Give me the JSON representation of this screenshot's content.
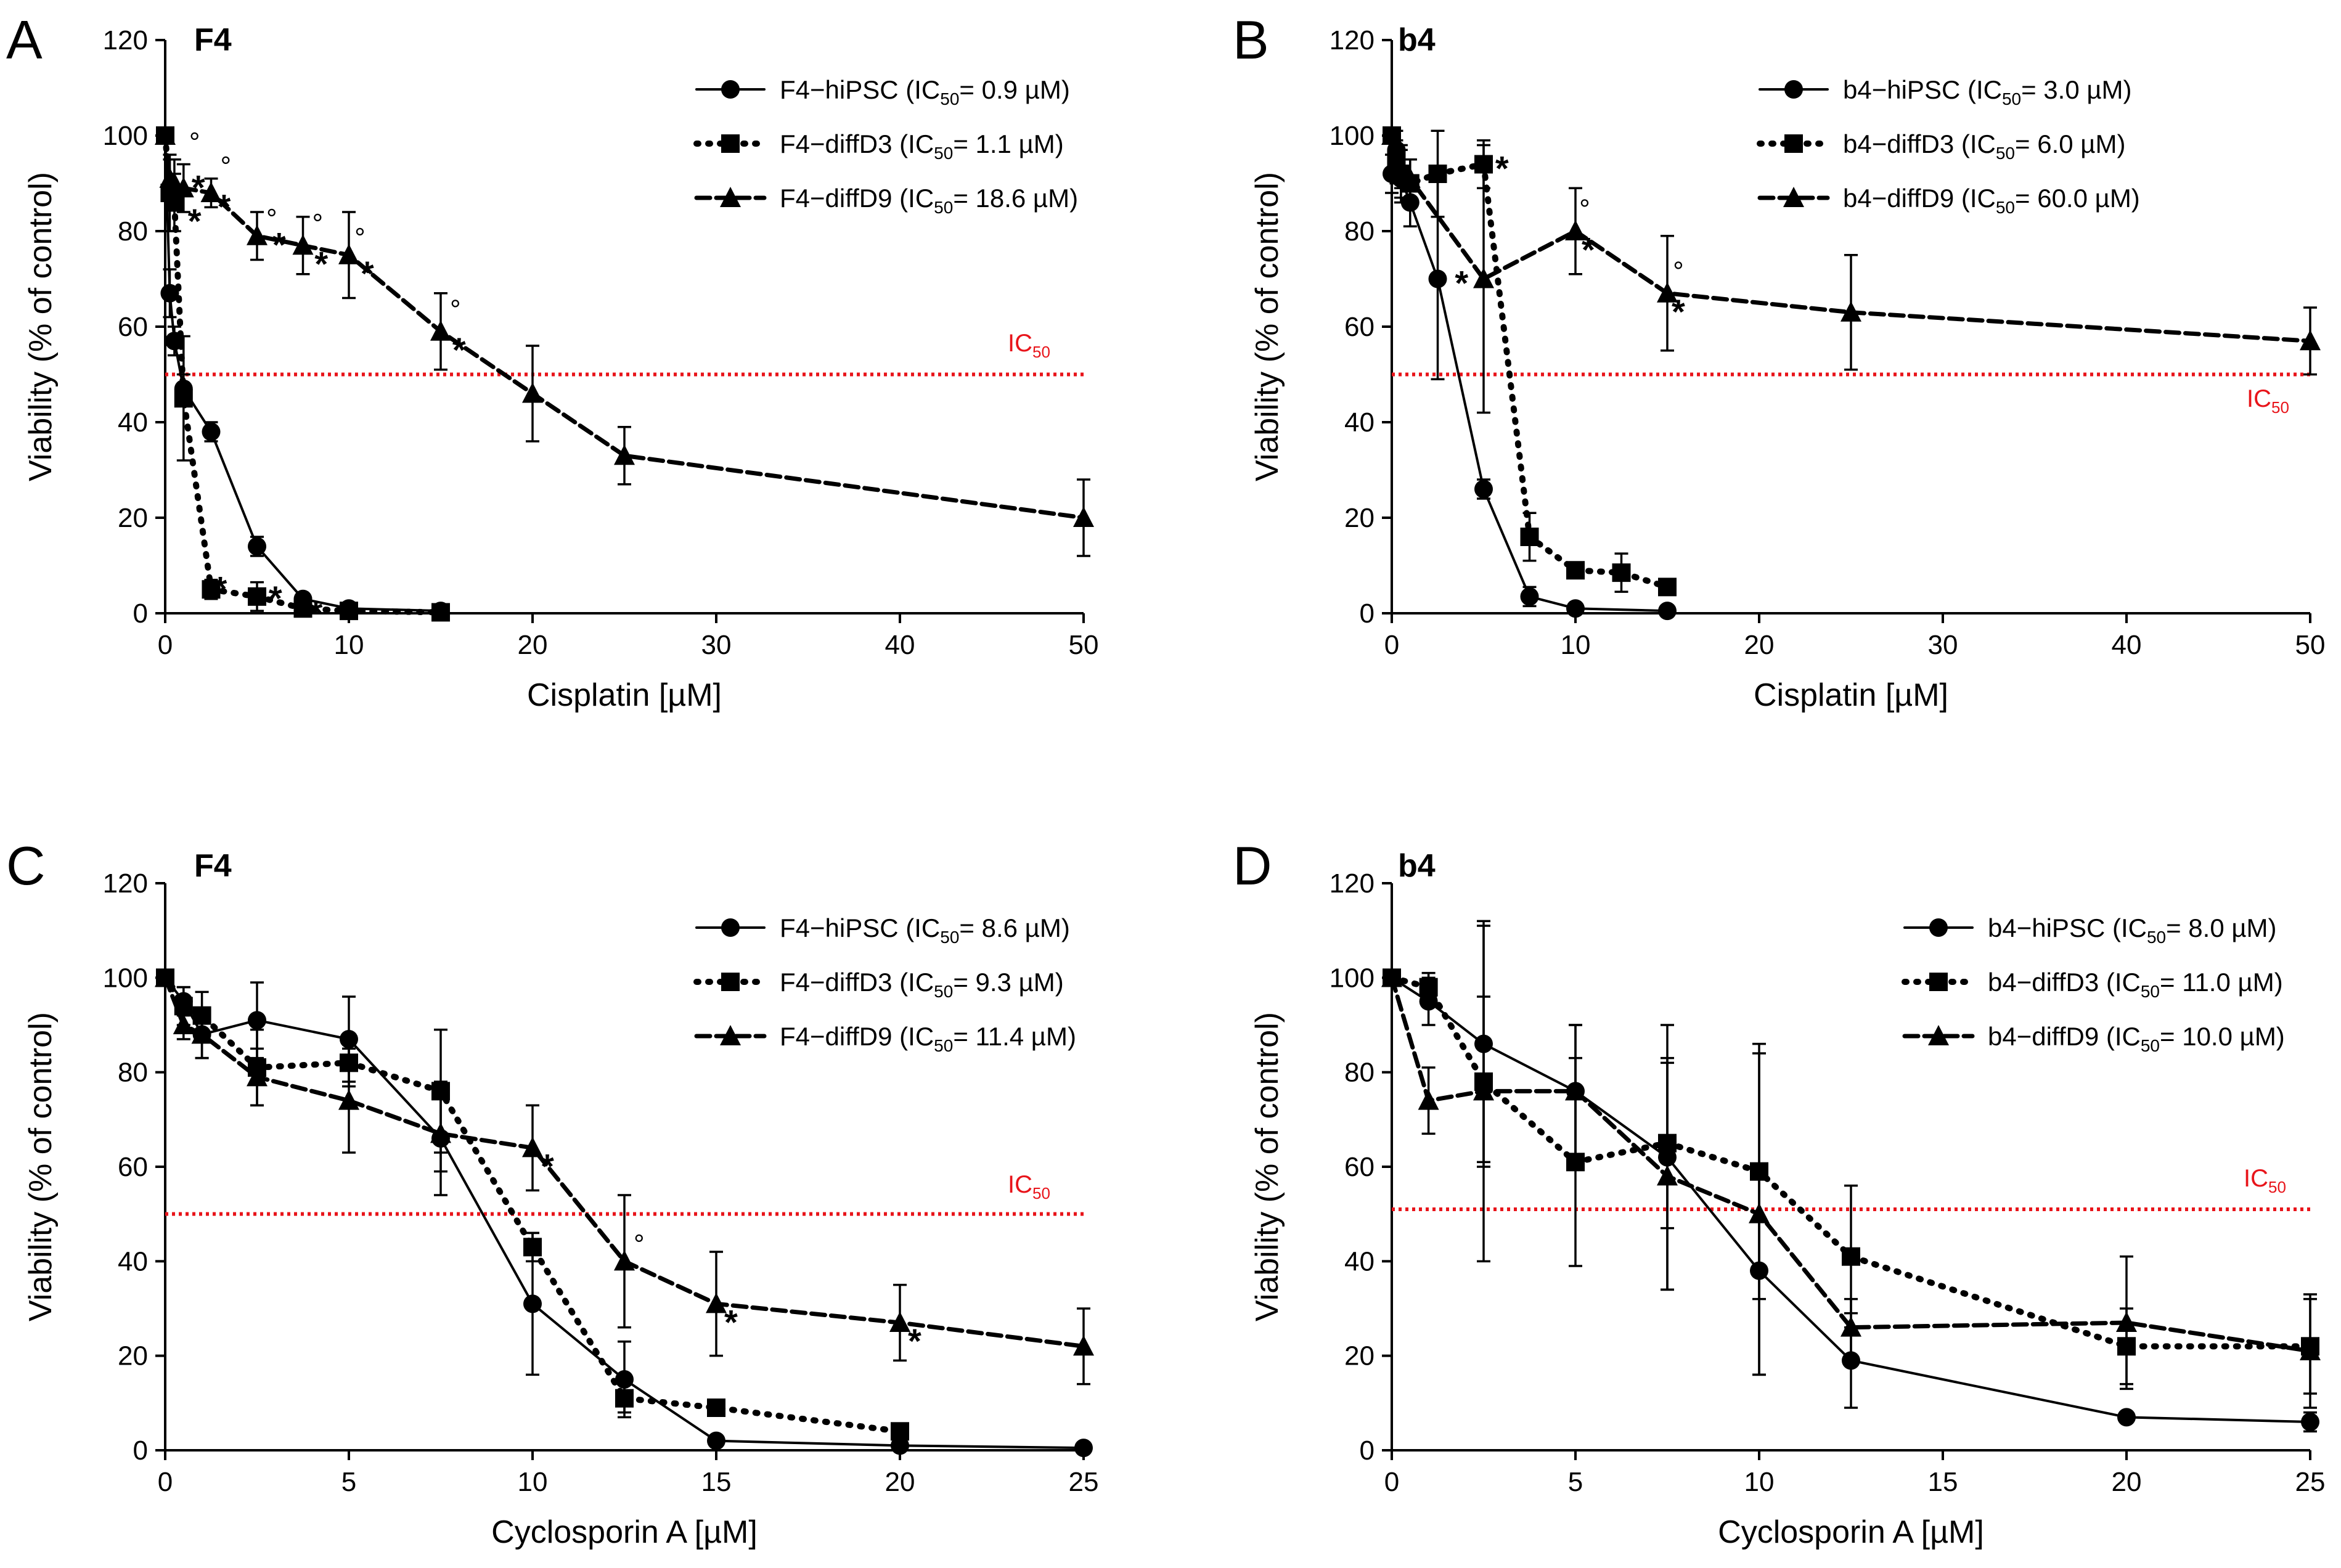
{
  "chart_data": [
    {
      "panel": "A",
      "title": "F4",
      "type": "line",
      "xlabel": "Cisplatin [µM]",
      "ylabel": "Viability (% of control)",
      "xlim": [
        0,
        50
      ],
      "ylim": [
        0,
        120
      ],
      "xticks": [
        0,
        10,
        20,
        30,
        40,
        50
      ],
      "yticks": [
        0,
        20,
        40,
        60,
        80,
        100,
        120
      ],
      "ic50_line": 50,
      "ic50_label": {
        "main": "IC",
        "sub": "50"
      },
      "legend_placement": "top-right",
      "series": [
        {
          "name": "F4−hiPSC",
          "ic50": "0.9 µM",
          "marker": "circle",
          "line": "solid",
          "x": [
            0,
            0.25,
            0.5,
            1,
            2.5,
            5,
            7.5,
            10,
            15
          ],
          "y": [
            100,
            67,
            57,
            47,
            38,
            14,
            3,
            1,
            0.5
          ],
          "err": [
            0,
            5,
            3,
            3,
            2,
            2,
            1,
            0.5,
            0.3
          ]
        },
        {
          "name": "F4−diffD3",
          "ic50": "1.1 µM",
          "marker": "square",
          "line": "dotted",
          "x": [
            0,
            0.25,
            0.5,
            1,
            2.5,
            5,
            7.5,
            10,
            15
          ],
          "y": [
            100,
            88,
            86,
            45,
            5,
            3.5,
            1,
            0.5,
            0.2
          ],
          "err": [
            0,
            8,
            6,
            13,
            2,
            3,
            1,
            0.5,
            0.3
          ]
        },
        {
          "name": "F4−diffD9",
          "ic50": "18.6 µM",
          "marker": "triangle",
          "line": "dashed",
          "x": [
            0,
            0.25,
            0.5,
            1,
            2.5,
            5,
            7.5,
            10,
            15,
            20,
            25,
            50
          ],
          "y": [
            100,
            91,
            90,
            89,
            88,
            79,
            77,
            75,
            59,
            46,
            33,
            20
          ],
          "err": [
            0,
            4,
            5,
            5,
            3,
            5,
            6,
            9,
            8,
            10,
            6,
            8
          ]
        }
      ],
      "annotations": [
        {
          "text": "*",
          "x": 1.8,
          "y": 90
        },
        {
          "text": "*",
          "x": 1.6,
          "y": 83
        },
        {
          "text": "*",
          "x": 3.2,
          "y": 86
        },
        {
          "text": "*",
          "x": 6.2,
          "y": 78
        },
        {
          "text": "*",
          "x": 8.5,
          "y": 74
        },
        {
          "text": "*",
          "x": 11.0,
          "y": 72
        },
        {
          "text": "*",
          "x": 16.0,
          "y": 56
        },
        {
          "text": "*",
          "x": 3.0,
          "y": 6
        },
        {
          "text": "*",
          "x": 6.0,
          "y": 4
        },
        {
          "text": "*",
          "x": 8.2,
          "y": 1
        },
        {
          "text": "°",
          "x": 1.6,
          "y": 98
        },
        {
          "text": "°",
          "x": 3.3,
          "y": 93
        },
        {
          "text": "°",
          "x": 5.8,
          "y": 82
        },
        {
          "text": "°",
          "x": 8.3,
          "y": 81
        },
        {
          "text": "°",
          "x": 10.6,
          "y": 78
        },
        {
          "text": "°",
          "x": 15.8,
          "y": 63
        }
      ]
    },
    {
      "panel": "B",
      "title": "b4",
      "type": "line",
      "xlabel": "Cisplatin [µM]",
      "ylabel": "Viability (% of control)",
      "xlim": [
        0,
        50
      ],
      "ylim": [
        0,
        120
      ],
      "xticks": [
        0,
        10,
        20,
        30,
        40,
        50
      ],
      "yticks": [
        0,
        20,
        40,
        60,
        80,
        100,
        120
      ],
      "ic50_line": 50,
      "ic50_label": {
        "main": "IC",
        "sub": "50"
      },
      "legend_placement": "top-right",
      "series": [
        {
          "name": "b4−hiPSC",
          "ic50": "3.0 µM",
          "marker": "circle",
          "line": "solid",
          "x": [
            0,
            0.25,
            0.5,
            1,
            2.5,
            5,
            7.5,
            10,
            15
          ],
          "y": [
            92,
            97,
            91,
            86,
            70,
            26,
            3.5,
            1,
            0.5
          ],
          "err": [
            4,
            4,
            4,
            5,
            21,
            2,
            2,
            1,
            0.5
          ]
        },
        {
          "name": "b4−diffD3",
          "ic50": "6.0 µM",
          "marker": "square",
          "line": "dotted",
          "x": [
            0,
            0.25,
            0.5,
            1,
            2.5,
            5,
            7.5,
            10,
            12.5,
            15
          ],
          "y": [
            100,
            95,
            92,
            90,
            92,
            94,
            16,
            9,
            8.5,
            5.5
          ],
          "err": [
            0,
            4,
            6,
            5,
            9,
            5,
            5,
            1,
            4,
            1
          ]
        },
        {
          "name": "b4−diffD9",
          "ic50": "60.0 µM",
          "marker": "triangle",
          "line": "dashed",
          "x": [
            0,
            0.25,
            0.5,
            1,
            5,
            10,
            15,
            25,
            50
          ],
          "y": [
            100,
            94,
            93,
            91,
            70,
            80,
            67,
            63,
            57
          ],
          "err": [
            0,
            4,
            4,
            4,
            28,
            9,
            12,
            12,
            7
          ]
        }
      ],
      "annotations": [
        {
          "text": "*",
          "x": 6.0,
          "y": 94
        },
        {
          "text": "*",
          "x": 3.8,
          "y": 70
        },
        {
          "text": "*",
          "x": 10.7,
          "y": 77
        },
        {
          "text": "*",
          "x": 15.6,
          "y": 64
        },
        {
          "text": "°",
          "x": 10.5,
          "y": 84
        },
        {
          "text": "°",
          "x": 15.6,
          "y": 71
        }
      ]
    },
    {
      "panel": "C",
      "title": "F4",
      "type": "line",
      "xlabel": "Cyclosporin A [µM]",
      "ylabel": "Viability (% of control)",
      "xlim": [
        0,
        25
      ],
      "ylim": [
        0,
        120
      ],
      "xticks": [
        0,
        5,
        10,
        15,
        20,
        25
      ],
      "yticks": [
        0,
        20,
        40,
        60,
        80,
        100,
        120
      ],
      "ic50_line": 50,
      "ic50_label": {
        "main": "IC",
        "sub": "50"
      },
      "legend_placement": "top-right",
      "series": [
        {
          "name": "F4−hiPSC",
          "ic50": "8.6 µM",
          "marker": "circle",
          "line": "solid",
          "x": [
            0,
            0.5,
            1,
            2.5,
            5,
            7.5,
            10,
            12.5,
            15,
            20,
            25
          ],
          "y": [
            100,
            95,
            88,
            91,
            87,
            66,
            31,
            15,
            2,
            1,
            0.5
          ],
          "err": [
            0,
            3,
            5,
            8,
            9,
            12,
            15,
            8,
            0.5,
            0.5,
            0.3
          ]
        },
        {
          "name": "F4−diffD3",
          "ic50": "9.3 µM",
          "marker": "square",
          "line": "dotted",
          "x": [
            0,
            0.5,
            1,
            2.5,
            5,
            7.5,
            10,
            12.5,
            15,
            20
          ],
          "y": [
            100,
            94,
            92,
            81,
            82,
            76,
            43,
            11,
            9,
            4
          ],
          "err": [
            0,
            4,
            5,
            8,
            5,
            13,
            3,
            3,
            1,
            1
          ]
        },
        {
          "name": "F4−diffD9",
          "ic50": "11.4 µM",
          "marker": "triangle",
          "line": "dashed",
          "x": [
            0,
            0.5,
            1,
            2.5,
            5,
            7.5,
            10,
            12.5,
            15,
            20,
            25
          ],
          "y": [
            100,
            90,
            88,
            79,
            74,
            67,
            64,
            40,
            31,
            27,
            22
          ],
          "err": [
            0,
            3,
            5,
            6,
            11,
            8,
            9,
            14,
            11,
            8,
            8
          ]
        }
      ],
      "annotations": [
        {
          "text": "*",
          "x": 10.4,
          "y": 61
        },
        {
          "text": "*",
          "x": 15.4,
          "y": 28
        },
        {
          "text": "*",
          "x": 20.4,
          "y": 24
        },
        {
          "text": "°",
          "x": 12.9,
          "y": 43
        }
      ]
    },
    {
      "panel": "D",
      "title": "b4",
      "type": "line",
      "xlabel": "Cyclosporin A [µM]",
      "ylabel": "Viability (% of control)",
      "xlim": [
        0,
        25
      ],
      "ylim": [
        0,
        120
      ],
      "xticks": [
        0,
        5,
        10,
        15,
        20,
        25
      ],
      "yticks": [
        0,
        20,
        40,
        60,
        80,
        100,
        120
      ],
      "ic50_line": 51,
      "ic50_label": {
        "main": "IC",
        "sub": "50"
      },
      "legend_placement": "top-right",
      "series": [
        {
          "name": "b4−hiPSC",
          "ic50": "8.0 µM",
          "marker": "circle",
          "line": "solid",
          "x": [
            0,
            1,
            2.5,
            5,
            7.5,
            10,
            12.5,
            20,
            25
          ],
          "y": [
            100,
            95,
            86,
            76,
            62,
            38,
            19,
            7,
            6
          ],
          "err": [
            0,
            5,
            25,
            14,
            28,
            22,
            10,
            1,
            2
          ]
        },
        {
          "name": "b4−diffD3",
          "ic50": "11.0 µM",
          "marker": "square",
          "line": "dotted",
          "x": [
            0,
            1,
            2.5,
            5,
            7.5,
            10,
            12.5,
            20,
            25
          ],
          "y": [
            100,
            98,
            78,
            61,
            65,
            59,
            41,
            22,
            22
          ],
          "err": [
            0,
            3,
            18,
            22,
            18,
            27,
            15,
            8,
            10
          ]
        },
        {
          "name": "b4−diffD9",
          "ic50": "10.0 µM",
          "marker": "triangle",
          "line": "dashed",
          "x": [
            0,
            1,
            2.5,
            5,
            7.5,
            10,
            12.5,
            20,
            25
          ],
          "y": [
            100,
            74,
            76,
            76,
            58,
            50,
            26,
            27,
            21
          ],
          "err": [
            0,
            7,
            36,
            14,
            24,
            34,
            6,
            14,
            12
          ]
        }
      ],
      "annotations": []
    }
  ]
}
